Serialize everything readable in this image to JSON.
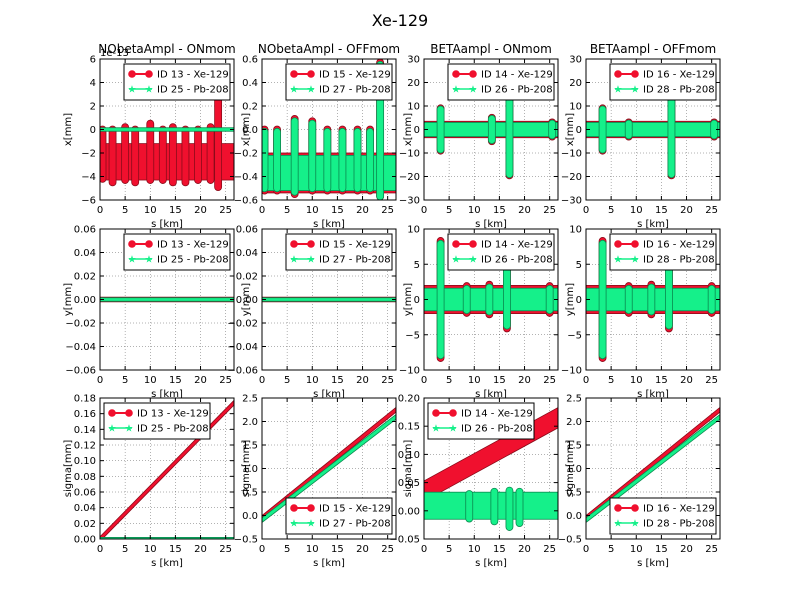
{
  "figure": {
    "title": "Xe-129"
  },
  "colors": {
    "series_a": "#f0102e",
    "series_b": "#15f08a",
    "edge_a": "#8b0b1a",
    "edge_b": "#0a8a4f"
  },
  "chart_data": [
    {
      "type": "scatter",
      "title": "NObetaAmpl - ONmom",
      "xlabel": "s [km]",
      "ylabel": "x[mm]",
      "xlim": [
        0,
        26.659
      ],
      "ylim": [
        -6,
        6
      ],
      "scale_label": "1e-13",
      "grid": true,
      "legend_position": "upper-right",
      "x_ticks": [
        0,
        5,
        10,
        15,
        20,
        25
      ],
      "y_ticks": [
        -6,
        -4,
        -2,
        0,
        2,
        4,
        6
      ],
      "y_tick_labels": [
        "−6",
        "−4",
        "−2",
        "0",
        "2",
        "4",
        "6"
      ],
      "series": [
        {
          "name": "ID 13 - Xe-129",
          "style": "band",
          "lo": -4.3,
          "hi": -1.2,
          "spikes": [
            {
              "x": 0.5,
              "lo": -4.5,
              "hi": 0.3
            },
            {
              "x": 2.5,
              "lo": -4.8,
              "hi": 0.3
            },
            {
              "x": 5,
              "lo": -4.6,
              "hi": 0.5
            },
            {
              "x": 7,
              "lo": -4.8,
              "hi": 0.3
            },
            {
              "x": 10,
              "lo": -4.6,
              "hi": 0.8
            },
            {
              "x": 12.5,
              "lo": -4.6,
              "hi": 0.3
            },
            {
              "x": 14.5,
              "lo": -4.8,
              "hi": 0.5
            },
            {
              "x": 17,
              "lo": -4.8,
              "hi": 0.3
            },
            {
              "x": 19.5,
              "lo": -4.6,
              "hi": 0.3
            },
            {
              "x": 22,
              "lo": -4.6,
              "hi": 0.5
            },
            {
              "x": 23.5,
              "lo": -5.2,
              "hi": 4.8
            }
          ]
        },
        {
          "name": "ID 25 - Pb-208",
          "style": "band",
          "lo": -0.15,
          "hi": 0.15,
          "spikes": []
        }
      ]
    },
    {
      "type": "scatter",
      "title": "NObetaAmpl - OFFmom",
      "xlabel": "s [km]",
      "ylabel": "x[mm]",
      "xlim": [
        0,
        26.659
      ],
      "ylim": [
        -0.6,
        0.6
      ],
      "grid": true,
      "legend_position": "upper-right",
      "x_ticks": [
        0,
        5,
        10,
        15,
        20,
        25
      ],
      "y_ticks": [
        -0.6,
        -0.4,
        -0.2,
        0,
        0.2,
        0.4,
        0.6
      ],
      "y_tick_labels": [
        "−0.6",
        "−0.4",
        "−0.2",
        "0.0",
        "0.2",
        "0.4",
        "0.6"
      ],
      "series": [
        {
          "name": "ID 15 - Xe-129",
          "style": "band",
          "lo": -0.54,
          "hi": -0.2,
          "spikes": [
            {
              "x": 0.5,
              "lo": -0.55,
              "hi": 0.03
            },
            {
              "x": 3,
              "lo": -0.55,
              "hi": 0.03
            },
            {
              "x": 6.5,
              "lo": -0.58,
              "hi": 0.12
            },
            {
              "x": 10,
              "lo": -0.55,
              "hi": 0.1
            },
            {
              "x": 13,
              "lo": -0.55,
              "hi": 0.03
            },
            {
              "x": 16,
              "lo": -0.55,
              "hi": 0.03
            },
            {
              "x": 19,
              "lo": -0.55,
              "hi": 0.03
            },
            {
              "x": 21.5,
              "lo": -0.55,
              "hi": 0.03
            },
            {
              "x": 23.5,
              "lo": -0.6,
              "hi": 0.6
            }
          ]
        },
        {
          "name": "ID 27 - Pb-208",
          "style": "band",
          "lo": -0.52,
          "hi": -0.22,
          "spikes": [
            {
              "x": 0.5,
              "lo": -0.53,
              "hi": 0.01
            },
            {
              "x": 3,
              "lo": -0.53,
              "hi": 0.01
            },
            {
              "x": 6.5,
              "lo": -0.56,
              "hi": 0.1
            },
            {
              "x": 10,
              "lo": -0.53,
              "hi": 0.08
            },
            {
              "x": 13,
              "lo": -0.53,
              "hi": 0.01
            },
            {
              "x": 16,
              "lo": -0.53,
              "hi": 0.01
            },
            {
              "x": 19,
              "lo": -0.53,
              "hi": 0.01
            },
            {
              "x": 21.5,
              "lo": -0.53,
              "hi": 0.01
            },
            {
              "x": 23.5,
              "lo": -0.6,
              "hi": 0.58
            }
          ]
        }
      ]
    },
    {
      "type": "scatter",
      "title": "BETAampl - ONmom",
      "xlabel": "s [km]",
      "ylabel": "x[mm]",
      "xlim": [
        0,
        26.659
      ],
      "ylim": [
        -30,
        30
      ],
      "grid": true,
      "legend_position": "upper-right",
      "x_ticks": [
        0,
        5,
        10,
        15,
        20,
        25
      ],
      "y_ticks": [
        -30,
        -20,
        -10,
        0,
        10,
        20,
        30
      ],
      "y_tick_labels": [
        "−30",
        "−20",
        "−10",
        "0",
        "10",
        "20",
        "30"
      ],
      "series": [
        {
          "name": "ID 14 - Xe-129",
          "style": "band",
          "lo": -3.5,
          "hi": 3.5,
          "spikes": [
            {
              "x": 3.3,
              "lo": -10.5,
              "hi": 10.5
            },
            {
              "x": 13.5,
              "lo": -6.5,
              "hi": 6.5
            },
            {
              "x": 17,
              "lo": -21,
              "hi": 14
            },
            {
              "x": 25.5,
              "lo": -4.5,
              "hi": 4.5
            }
          ]
        },
        {
          "name": "ID 26 - Pb-208",
          "style": "band",
          "lo": -3,
          "hi": 3,
          "spikes": [
            {
              "x": 3.3,
              "lo": -10,
              "hi": 10
            },
            {
              "x": 13.5,
              "lo": -6,
              "hi": 6
            },
            {
              "x": 17,
              "lo": -20.5,
              "hi": 13.5
            },
            {
              "x": 25.5,
              "lo": -4,
              "hi": 4
            }
          ]
        }
      ]
    },
    {
      "type": "scatter",
      "title": "BETAampl - OFFmom",
      "xlabel": "s [km]",
      "ylabel": "x[mm]",
      "xlim": [
        0,
        26.659
      ],
      "ylim": [
        -30,
        30
      ],
      "grid": true,
      "legend_position": "upper-right",
      "x_ticks": [
        0,
        5,
        10,
        15,
        20,
        25
      ],
      "y_ticks": [
        -30,
        -20,
        -10,
        0,
        10,
        20,
        30
      ],
      "y_tick_labels": [
        "−30",
        "−20",
        "−10",
        "0",
        "10",
        "20",
        "30"
      ],
      "series": [
        {
          "name": "ID 16 - Xe-129",
          "style": "band",
          "lo": -3.5,
          "hi": 3.5,
          "spikes": [
            {
              "x": 3.3,
              "lo": -10.5,
              "hi": 10.5
            },
            {
              "x": 8.5,
              "lo": -4.5,
              "hi": 4.5
            },
            {
              "x": 17,
              "lo": -21,
              "hi": 14
            },
            {
              "x": 25.5,
              "lo": -4.5,
              "hi": 4.5
            }
          ]
        },
        {
          "name": "ID 28 - Pb-208",
          "style": "band",
          "lo": -3,
          "hi": 3,
          "spikes": [
            {
              "x": 3.3,
              "lo": -10,
              "hi": 10
            },
            {
              "x": 8.5,
              "lo": -4,
              "hi": 4
            },
            {
              "x": 17,
              "lo": -20.5,
              "hi": 13.5
            },
            {
              "x": 25.5,
              "lo": -4,
              "hi": 4
            }
          ]
        }
      ]
    },
    {
      "type": "scatter",
      "title": "",
      "xlabel": "s [km]",
      "ylabel": "y[mm]",
      "xlim": [
        0,
        26.659
      ],
      "ylim": [
        -0.06,
        0.06
      ],
      "grid": true,
      "legend_position": "upper-right",
      "x_ticks": [
        0,
        5,
        10,
        15,
        20,
        25
      ],
      "y_ticks": [
        -0.06,
        -0.04,
        -0.02,
        0,
        0.02,
        0.04,
        0.06
      ],
      "y_tick_labels": [
        "−0.06",
        "−0.04",
        "−0.02",
        "0.00",
        "0.02",
        "0.04",
        "0.06"
      ],
      "series": [
        {
          "name": "ID 13 - Xe-129",
          "style": "band",
          "lo": -0.002,
          "hi": 0.002,
          "spikes": []
        },
        {
          "name": "ID 25 - Pb-208",
          "style": "band",
          "lo": -0.0015,
          "hi": 0.0015,
          "spikes": []
        }
      ]
    },
    {
      "type": "scatter",
      "title": "",
      "xlabel": "s [km]",
      "ylabel": "y[mm]",
      "xlim": [
        0,
        26.659
      ],
      "ylim": [
        -0.06,
        0.06
      ],
      "grid": true,
      "legend_position": "upper-right",
      "x_ticks": [
        0,
        5,
        10,
        15,
        20,
        25
      ],
      "y_ticks": [
        -0.06,
        -0.04,
        -0.02,
        0,
        0.02,
        0.04,
        0.06
      ],
      "y_tick_labels": [
        "−0.06",
        "−0.04",
        "−0.02",
        "0.00",
        "0.02",
        "0.04",
        "0.06"
      ],
      "series": [
        {
          "name": "ID 15 - Xe-129",
          "style": "band",
          "lo": -0.002,
          "hi": 0.002,
          "spikes": []
        },
        {
          "name": "ID 27 - Pb-208",
          "style": "band",
          "lo": -0.0015,
          "hi": 0.0015,
          "spikes": []
        }
      ]
    },
    {
      "type": "scatter",
      "title": "",
      "xlabel": "s [km]",
      "ylabel": "y[mm]",
      "xlim": [
        0,
        26.659
      ],
      "ylim": [
        -10,
        10
      ],
      "grid": true,
      "legend_position": "upper-right",
      "x_ticks": [
        0,
        5,
        10,
        15,
        20,
        25
      ],
      "y_ticks": [
        -10,
        -5,
        0,
        5,
        10
      ],
      "y_tick_labels": [
        "−10",
        "−5",
        "0",
        "5",
        "10"
      ],
      "series": [
        {
          "name": "ID 14 - Xe-129",
          "style": "band",
          "lo": -2,
          "hi": 2,
          "spikes": [
            {
              "x": 3.3,
              "lo": -8.8,
              "hi": 8.8
            },
            {
              "x": 8.5,
              "lo": -2.4,
              "hi": 2.4
            },
            {
              "x": 13,
              "lo": -2.6,
              "hi": 2.6
            },
            {
              "x": 16.5,
              "lo": -4.6,
              "hi": 5
            },
            {
              "x": 25,
              "lo": -2.4,
              "hi": 2.4
            }
          ]
        },
        {
          "name": "ID 26 - Pb-208",
          "style": "band",
          "lo": -1.6,
          "hi": 1.6,
          "spikes": [
            {
              "x": 3.3,
              "lo": -8.4,
              "hi": 8.4
            },
            {
              "x": 8.5,
              "lo": -2,
              "hi": 2
            },
            {
              "x": 13,
              "lo": -2.2,
              "hi": 2.2
            },
            {
              "x": 16.5,
              "lo": -4.2,
              "hi": 4.8
            },
            {
              "x": 25,
              "lo": -2,
              "hi": 2
            }
          ]
        }
      ]
    },
    {
      "type": "scatter",
      "title": "",
      "xlabel": "s [km]",
      "ylabel": "y[mm]",
      "xlim": [
        0,
        26.659
      ],
      "ylim": [
        -10,
        10
      ],
      "grid": true,
      "legend_position": "upper-right",
      "x_ticks": [
        0,
        5,
        10,
        15,
        20,
        25
      ],
      "y_ticks": [
        -10,
        -5,
        0,
        5,
        10
      ],
      "y_tick_labels": [
        "−10",
        "−5",
        "0",
        "5",
        "10"
      ],
      "series": [
        {
          "name": "ID 16 - Xe-129",
          "style": "band",
          "lo": -2,
          "hi": 2,
          "spikes": [
            {
              "x": 3.3,
              "lo": -8.8,
              "hi": 8.8
            },
            {
              "x": 8.5,
              "lo": -2.4,
              "hi": 2.4
            },
            {
              "x": 13,
              "lo": -2.6,
              "hi": 2.6
            },
            {
              "x": 16.5,
              "lo": -4.6,
              "hi": 5
            },
            {
              "x": 25,
              "lo": -2.4,
              "hi": 2.4
            }
          ]
        },
        {
          "name": "ID 28 - Pb-208",
          "style": "band",
          "lo": -1.6,
          "hi": 1.6,
          "spikes": [
            {
              "x": 3.3,
              "lo": -8.4,
              "hi": 8.4
            },
            {
              "x": 8.5,
              "lo": -2,
              "hi": 2
            },
            {
              "x": 13,
              "lo": -2.2,
              "hi": 2.2
            },
            {
              "x": 16.5,
              "lo": -4.2,
              "hi": 4.8
            },
            {
              "x": 25,
              "lo": -2,
              "hi": 2
            }
          ]
        }
      ]
    },
    {
      "type": "line",
      "title": "",
      "xlabel": "s [km]",
      "ylabel": "sigma[mm]",
      "xlim": [
        0,
        26.659
      ],
      "ylim": [
        0,
        0.18
      ],
      "grid": true,
      "legend_position": "upper-left",
      "x_ticks": [
        0,
        5,
        10,
        15,
        20,
        25
      ],
      "y_ticks": [
        0,
        0.02,
        0.04,
        0.06,
        0.08,
        0.1,
        0.12,
        0.14,
        0.16,
        0.18
      ],
      "y_tick_labels": [
        "0.00",
        "0.02",
        "0.04",
        "0.06",
        "0.08",
        "0.10",
        "0.12",
        "0.14",
        "0.16",
        "0.18"
      ],
      "series": [
        {
          "name": "ID 13 - Xe-129",
          "style": "ramp",
          "x": [
            0,
            26.659
          ],
          "y": [
            0,
            0.174
          ],
          "half_width": 0.003
        },
        {
          "name": "ID 25 - Pb-208",
          "style": "ramp",
          "x": [
            0,
            26.659
          ],
          "y": [
            0.0005,
            0.0005
          ],
          "half_width": 0.0015
        }
      ]
    },
    {
      "type": "line",
      "title": "",
      "xlabel": "s [km]",
      "ylabel": "sigma[mm]",
      "xlim": [
        0,
        26.659
      ],
      "ylim": [
        -0.5,
        2.5
      ],
      "grid": true,
      "legend_position": "lower-right",
      "x_ticks": [
        0,
        5,
        10,
        15,
        20,
        25
      ],
      "y_ticks": [
        -0.5,
        0,
        0.5,
        1,
        1.5,
        2,
        2.5
      ],
      "y_tick_labels": [
        "−0.5",
        "0.0",
        "0.5",
        "1.0",
        "1.5",
        "2.0",
        "2.5"
      ],
      "series": [
        {
          "name": "ID 15 - Xe-129",
          "style": "ramp",
          "x": [
            0,
            26.659
          ],
          "y": [
            -0.05,
            2.25
          ],
          "half_width": 0.05
        },
        {
          "name": "ID 27 - Pb-208",
          "style": "ramp",
          "x": [
            0,
            26.659
          ],
          "y": [
            -0.1,
            2.1
          ],
          "half_width": 0.05
        }
      ]
    },
    {
      "type": "line",
      "title": "",
      "xlabel": "s [km]",
      "ylabel": "sigma[mm]",
      "xlim": [
        0,
        26.659
      ],
      "ylim": [
        -0.05,
        0.2
      ],
      "grid": true,
      "legend_position": "upper-left",
      "x_ticks": [
        0,
        5,
        10,
        15,
        20,
        25
      ],
      "y_ticks": [
        -0.05,
        0,
        0.05,
        0.1,
        0.15,
        0.2
      ],
      "y_tick_labels": [
        "−0.05",
        "0.00",
        "0.05",
        "0.10",
        "0.15",
        "0.20"
      ],
      "series": [
        {
          "name": "ID 14 - Xe-129",
          "style": "ramp",
          "x": [
            0,
            26.659
          ],
          "y": [
            0.035,
            0.165
          ],
          "half_width": 0.018
        },
        {
          "name": "ID 26 - Pb-208",
          "style": "band",
          "lo": -0.015,
          "hi": 0.033,
          "spikes": [
            {
              "x": 9,
              "lo": -0.02,
              "hi": 0.036
            },
            {
              "x": 14,
              "lo": -0.025,
              "hi": 0.04
            },
            {
              "x": 17,
              "lo": -0.035,
              "hi": 0.042
            },
            {
              "x": 19,
              "lo": -0.028,
              "hi": 0.04
            }
          ]
        }
      ]
    },
    {
      "type": "line",
      "title": "",
      "xlabel": "s [km]",
      "ylabel": "sigma[mm]",
      "xlim": [
        0,
        26.659
      ],
      "ylim": [
        -0.5,
        2.5
      ],
      "grid": true,
      "legend_position": "lower-right",
      "x_ticks": [
        0,
        5,
        10,
        15,
        20,
        25
      ],
      "y_ticks": [
        -0.5,
        0,
        0.5,
        1,
        1.5,
        2,
        2.5
      ],
      "y_tick_labels": [
        "−0.5",
        "0.0",
        "0.5",
        "1.0",
        "1.5",
        "2.0",
        "2.5"
      ],
      "series": [
        {
          "name": "ID 16 - Xe-129",
          "style": "ramp",
          "x": [
            0,
            26.659
          ],
          "y": [
            -0.05,
            2.25
          ],
          "half_width": 0.05
        },
        {
          "name": "ID 28 - Pb-208",
          "style": "ramp",
          "x": [
            0,
            26.659
          ],
          "y": [
            -0.1,
            2.1
          ],
          "half_width": 0.05
        }
      ]
    }
  ]
}
